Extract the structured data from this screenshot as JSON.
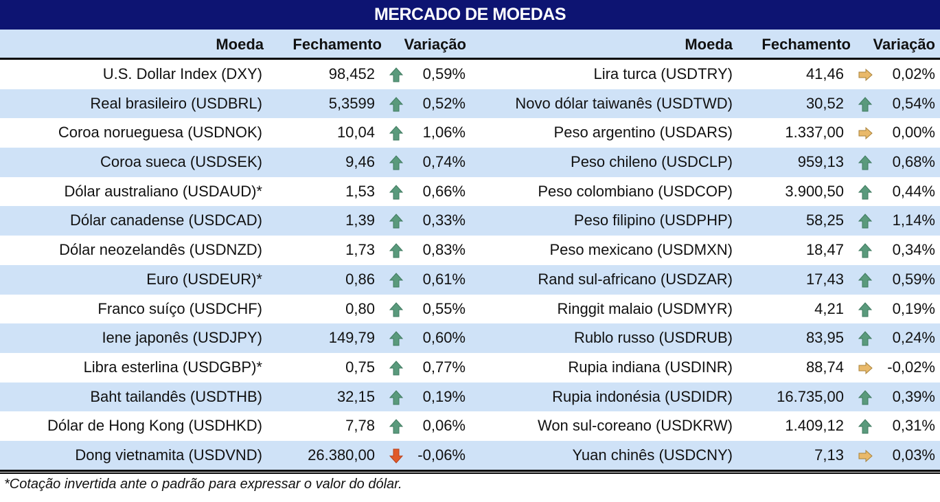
{
  "title": "MERCADO DE MOEDAS",
  "headers": {
    "moeda": "Moeda",
    "fechamento": "Fechamento",
    "variacao": "Variação"
  },
  "colors": {
    "title_bg": "#0d1472",
    "row_alt": "#cfe2f7",
    "up": "#5a9a7c",
    "side": "#e9b96a",
    "down": "#e05a2a"
  },
  "left": [
    {
      "name": "U.S. Dollar Index (DXY)",
      "close": "98,452",
      "trend": "up",
      "var": "0,59%"
    },
    {
      "name": "Real brasileiro (USDBRL)",
      "close": "5,3599",
      "trend": "up",
      "var": "0,52%"
    },
    {
      "name": "Coroa norueguesa (USDNOK)",
      "close": "10,04",
      "trend": "up",
      "var": "1,06%"
    },
    {
      "name": "Coroa sueca (USDSEK)",
      "close": "9,46",
      "trend": "up",
      "var": "0,74%"
    },
    {
      "name": "Dólar australiano (USDAUD)*",
      "close": "1,53",
      "trend": "up",
      "var": "0,66%"
    },
    {
      "name": "Dólar canadense (USDCAD)",
      "close": "1,39",
      "trend": "up",
      "var": "0,33%"
    },
    {
      "name": "Dólar neozelandês (USDNZD)",
      "close": "1,73",
      "trend": "up",
      "var": "0,83%"
    },
    {
      "name": "Euro (USDEUR)*",
      "close": "0,86",
      "trend": "up",
      "var": "0,61%"
    },
    {
      "name": "Franco suíço (USDCHF)",
      "close": "0,80",
      "trend": "up",
      "var": "0,55%"
    },
    {
      "name": "Iene japonês (USDJPY)",
      "close": "149,79",
      "trend": "up",
      "var": "0,60%"
    },
    {
      "name": "Libra esterlina (USDGBP)*",
      "close": "0,75",
      "trend": "up",
      "var": "0,77%"
    },
    {
      "name": "Baht tailandês (USDTHB)",
      "close": "32,15",
      "trend": "up",
      "var": "0,19%"
    },
    {
      "name": "Dólar de Hong Kong (USDHKD)",
      "close": "7,78",
      "trend": "up",
      "var": "0,06%"
    },
    {
      "name": "Dong vietnamita (USDVND)",
      "close": "26.380,00",
      "trend": "down",
      "var": "-0,06%"
    }
  ],
  "right": [
    {
      "name": "Lira turca (USDTRY)",
      "close": "41,46",
      "trend": "side",
      "var": "0,02%"
    },
    {
      "name": "Novo dólar taiwanês (USDTWD)",
      "close": "30,52",
      "trend": "up",
      "var": "0,54%"
    },
    {
      "name": "Peso argentino (USDARS)",
      "close": "1.337,00",
      "trend": "side",
      "var": "0,00%"
    },
    {
      "name": "Peso chileno (USDCLP)",
      "close": "959,13",
      "trend": "up",
      "var": "0,68%"
    },
    {
      "name": "Peso colombiano (USDCOP)",
      "close": "3.900,50",
      "trend": "up",
      "var": "0,44%"
    },
    {
      "name": "Peso filipino (USDPHP)",
      "close": "58,25",
      "trend": "up",
      "var": "1,14%"
    },
    {
      "name": "Peso mexicano (USDMXN)",
      "close": "18,47",
      "trend": "up",
      "var": "0,34%"
    },
    {
      "name": "Rand sul-africano (USDZAR)",
      "close": "17,43",
      "trend": "up",
      "var": "0,59%"
    },
    {
      "name": "Ringgit malaio (USDMYR)",
      "close": "4,21",
      "trend": "up",
      "var": "0,19%"
    },
    {
      "name": "Rublo russo (USDRUB)",
      "close": "83,95",
      "trend": "up",
      "var": "0,24%"
    },
    {
      "name": "Rupia indiana (USDINR)",
      "close": "88,74",
      "trend": "side",
      "var": "-0,02%"
    },
    {
      "name": "Rupia indonésia (USDIDR)",
      "close": "16.735,00",
      "trend": "up",
      "var": "0,39%"
    },
    {
      "name": "Won sul-coreano (USDKRW)",
      "close": "1.409,12",
      "trend": "up",
      "var": "0,31%"
    },
    {
      "name": "Yuan chinês (USDCNY)",
      "close": "7,13",
      "trend": "side",
      "var": "0,03%"
    }
  ],
  "footnote": "*Cotação invertida ante o padrão para expressar o valor do dólar."
}
